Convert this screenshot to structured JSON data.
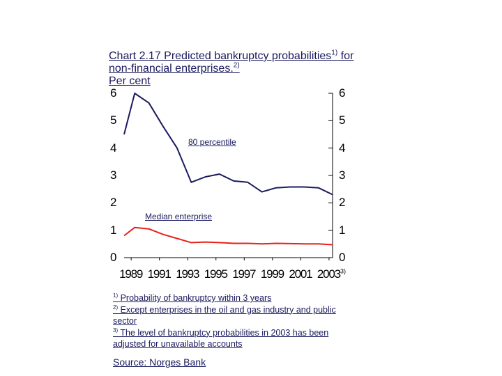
{
  "title_main": "Chart 2.17 Predicted bankruptcy probabilities",
  "title_sup": "1)",
  "title_rest": " for non-financial enterprises.",
  "title_sup2": "2)",
  "title_unit": "Per cent",
  "chart_data": {
    "type": "line",
    "title": "Chart 2.17 Predicted bankruptcy probabilities1) for non-financial enterprises.2)",
    "ylabel": "Per cent",
    "ylim": [
      0,
      6
    ],
    "yticks": [
      "0",
      "1",
      "2",
      "3",
      "4",
      "5",
      "6"
    ],
    "xlim": [
      1989,
      2003.75
    ],
    "xticks": [
      "1989",
      "1991",
      "1993",
      "1995",
      "1997",
      "1999",
      "2001",
      "2003"
    ],
    "xtick_last_sup": "3)",
    "series": [
      {
        "name": "80 percentile",
        "color": "#1a1a5e",
        "x": [
          1989,
          1989.75,
          1990.75,
          1991.75,
          1992.75,
          1993.75,
          1994.75,
          1995.75,
          1996.75,
          1997.75,
          1998.75,
          1999.75,
          2000.75,
          2001.75,
          2002.75,
          2003.75
        ],
        "values": [
          4.5,
          6.0,
          5.65,
          4.8,
          4.0,
          2.75,
          2.95,
          3.05,
          2.8,
          2.75,
          2.4,
          2.55,
          2.58,
          2.58,
          2.55,
          2.3
        ]
      },
      {
        "name": "Median enterprise",
        "color": "#e8201a",
        "x": [
          1989,
          1989.75,
          1990.75,
          1991.75,
          1992.75,
          1993.75,
          1994.75,
          1995.75,
          1996.75,
          1997.75,
          1998.75,
          1999.75,
          2000.75,
          2001.75,
          2002.75,
          2003.75
        ],
        "values": [
          0.8,
          1.1,
          1.05,
          0.85,
          0.7,
          0.55,
          0.57,
          0.55,
          0.52,
          0.52,
          0.5,
          0.52,
          0.51,
          0.5,
          0.5,
          0.47
        ]
      }
    ],
    "annotations": [
      "80 percentile",
      "Median enterprise"
    ]
  },
  "notes": [
    {
      "sup": "1)",
      "text": " Probability of bankruptcy within 3 years"
    },
    {
      "sup": "2)",
      "text": " Except enterprises in the oil and gas industry and public sector"
    },
    {
      "sup": "3)",
      "text": " The level of bankruptcy probabilities in 2003 has been adjusted for unavailable accounts"
    }
  ],
  "source": "Source: Norges Bank"
}
